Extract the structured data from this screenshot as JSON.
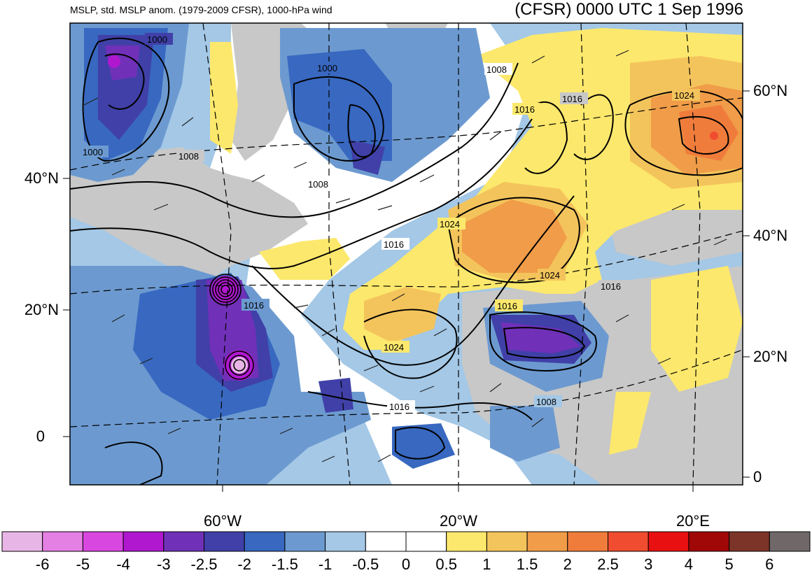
{
  "header": {
    "left_title": "MSLP, std. MSLP anom. (1979-2009 CFSR), 1000-hPa wind",
    "right_title": "(CFSR) 0000 UTC 1 Sep 1996"
  },
  "axes": {
    "left_lat_labels": [
      "40°N",
      "20°N",
      "0"
    ],
    "right_lat_labels": [
      "60°N",
      "40°N",
      "20°N",
      "0"
    ],
    "bottom_lon_labels": [
      "60°W",
      "20°W",
      "20°E"
    ]
  },
  "contour_labels": [
    "1000",
    "1000",
    "1000",
    "1008",
    "1008",
    "1008",
    "1016",
    "1016",
    "1016",
    "1016",
    "1016",
    "1016",
    "1024",
    "1024",
    "1024",
    "1024",
    "1008"
  ],
  "colorbar": {
    "tick_labels": [
      "-6",
      "-5",
      "-4",
      "-3",
      "-2.5",
      "-2",
      "-1.5",
      "-1",
      "-0.5",
      "0",
      "0.5",
      "1",
      "1.5",
      "2",
      "2.5",
      "3",
      "4",
      "5",
      "6"
    ],
    "colors": [
      "#e8b6e6",
      "#e480e4",
      "#d848e0",
      "#b018d0",
      "#7030b8",
      "#4040a8",
      "#3868c0",
      "#6c9ad0",
      "#a4c8e6",
      "#ffffff",
      "#ffffff",
      "#fce86c",
      "#f4c45c",
      "#f09c48",
      "#f07c3c",
      "#f04c30",
      "#e81010",
      "#a00808",
      "#7c3428",
      "#706868"
    ]
  }
}
